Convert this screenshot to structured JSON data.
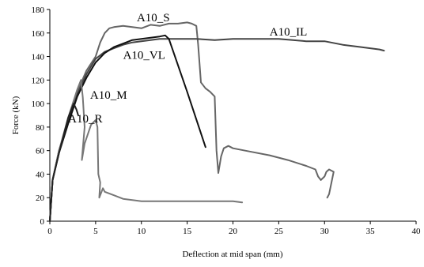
{
  "chart_data": {
    "type": "line",
    "xlabel": "Deflection at mid span (mm)",
    "ylabel": "Force (kN)",
    "xlim": [
      0,
      40
    ],
    "ylim": [
      0,
      180
    ],
    "x_ticks": [
      0,
      5,
      10,
      15,
      20,
      25,
      30,
      35,
      40
    ],
    "y_ticks": [
      0,
      20,
      40,
      60,
      80,
      100,
      120,
      140,
      160,
      180
    ],
    "grid": false,
    "legend": "none",
    "series": [
      {
        "name": "A10_S",
        "color": "#666666",
        "points": [
          [
            0,
            0
          ],
          [
            0.3,
            35
          ],
          [
            1,
            60
          ],
          [
            2,
            85
          ],
          [
            3,
            110
          ],
          [
            4,
            128
          ],
          [
            5,
            140
          ],
          [
            5.5,
            152
          ],
          [
            6,
            160
          ],
          [
            6.5,
            164
          ],
          [
            7,
            165
          ],
          [
            8,
            166
          ],
          [
            9,
            165
          ],
          [
            10,
            164
          ],
          [
            11,
            167
          ],
          [
            12,
            166
          ],
          [
            13,
            168
          ],
          [
            14,
            168
          ],
          [
            15,
            169
          ],
          [
            15.5,
            168
          ],
          [
            16,
            166
          ],
          [
            16.2,
            150
          ],
          [
            16.5,
            118
          ],
          [
            17,
            113
          ],
          [
            17.5,
            110
          ],
          [
            18,
            106
          ],
          [
            18.2,
            60
          ],
          [
            18.4,
            41
          ],
          [
            18.7,
            55
          ],
          [
            19,
            62
          ],
          [
            19.5,
            64
          ],
          [
            20,
            62
          ],
          [
            22,
            59
          ],
          [
            24,
            56
          ],
          [
            26,
            52
          ],
          [
            28,
            47
          ],
          [
            29,
            44
          ],
          [
            29.3,
            38
          ],
          [
            29.6,
            35
          ],
          [
            30,
            38
          ],
          [
            30.2,
            42
          ],
          [
            30.5,
            44
          ],
          [
            31,
            42
          ],
          [
            30.5,
            23
          ],
          [
            30.3,
            20
          ]
        ]
      },
      {
        "name": "A10_IL",
        "color": "#444444",
        "points": [
          [
            0,
            0
          ],
          [
            0.3,
            35
          ],
          [
            1,
            60
          ],
          [
            2,
            85
          ],
          [
            3,
            108
          ],
          [
            4,
            125
          ],
          [
            5,
            138
          ],
          [
            6,
            144
          ],
          [
            7,
            147
          ],
          [
            8,
            150
          ],
          [
            9,
            152
          ],
          [
            10,
            153
          ],
          [
            11,
            154
          ],
          [
            12,
            155
          ],
          [
            14,
            155
          ],
          [
            16,
            155
          ],
          [
            18,
            154
          ],
          [
            20,
            155
          ],
          [
            22,
            155
          ],
          [
            25,
            155
          ],
          [
            28,
            153
          ],
          [
            30,
            153
          ],
          [
            32,
            150
          ],
          [
            34,
            148
          ],
          [
            35,
            147
          ],
          [
            36,
            146
          ],
          [
            36.5,
            145
          ]
        ]
      },
      {
        "name": "A10_VL",
        "color": "#111111",
        "points": [
          [
            0,
            0
          ],
          [
            0.3,
            35
          ],
          [
            1,
            58
          ],
          [
            2,
            83
          ],
          [
            3,
            106
          ],
          [
            4,
            122
          ],
          [
            5,
            135
          ],
          [
            6,
            143
          ],
          [
            7,
            148
          ],
          [
            8,
            151
          ],
          [
            9,
            154
          ],
          [
            10,
            155
          ],
          [
            11,
            156
          ],
          [
            12,
            157
          ],
          [
            12.6,
            158
          ],
          [
            13,
            155
          ],
          [
            15,
            110
          ],
          [
            17,
            63
          ]
        ]
      },
      {
        "name": "A10_M",
        "color": "#777777",
        "points": [
          [
            0,
            0
          ],
          [
            0.3,
            35
          ],
          [
            1,
            60
          ],
          [
            2,
            88
          ],
          [
            3,
            112
          ],
          [
            3.4,
            120
          ],
          [
            3.6,
            105
          ],
          [
            3.8,
            80
          ],
          [
            3.6,
            62
          ],
          [
            3.5,
            52
          ],
          [
            3.8,
            66
          ],
          [
            4.5,
            82
          ],
          [
            5,
            86
          ],
          [
            5.2,
            80
          ],
          [
            5.3,
            40
          ],
          [
            5.5,
            33
          ],
          [
            5.4,
            20
          ],
          [
            5.8,
            28
          ],
          [
            6,
            25
          ],
          [
            7,
            22
          ],
          [
            8,
            19
          ],
          [
            10,
            17
          ],
          [
            12,
            17
          ],
          [
            14,
            17
          ],
          [
            16,
            17
          ],
          [
            18,
            17
          ],
          [
            20,
            17
          ],
          [
            21,
            16
          ]
        ]
      },
      {
        "name": "A10_R",
        "color": "#222222",
        "points": [
          [
            0,
            0
          ],
          [
            0.3,
            35
          ],
          [
            1,
            58
          ],
          [
            2,
            88
          ],
          [
            2.6,
            100
          ],
          [
            2.9,
            95
          ],
          [
            3.1,
            90
          ]
        ]
      }
    ],
    "annotations": [
      {
        "text": "A10_S",
        "x": 9.5,
        "y": 170
      },
      {
        "text": "A10_IL",
        "x": 24,
        "y": 158
      },
      {
        "text": "A10_VL",
        "x": 8,
        "y": 138
      },
      {
        "text": "A10_M",
        "x": 4.4,
        "y": 104
      },
      {
        "text": "A10_R",
        "x": 2,
        "y": 84
      }
    ]
  }
}
